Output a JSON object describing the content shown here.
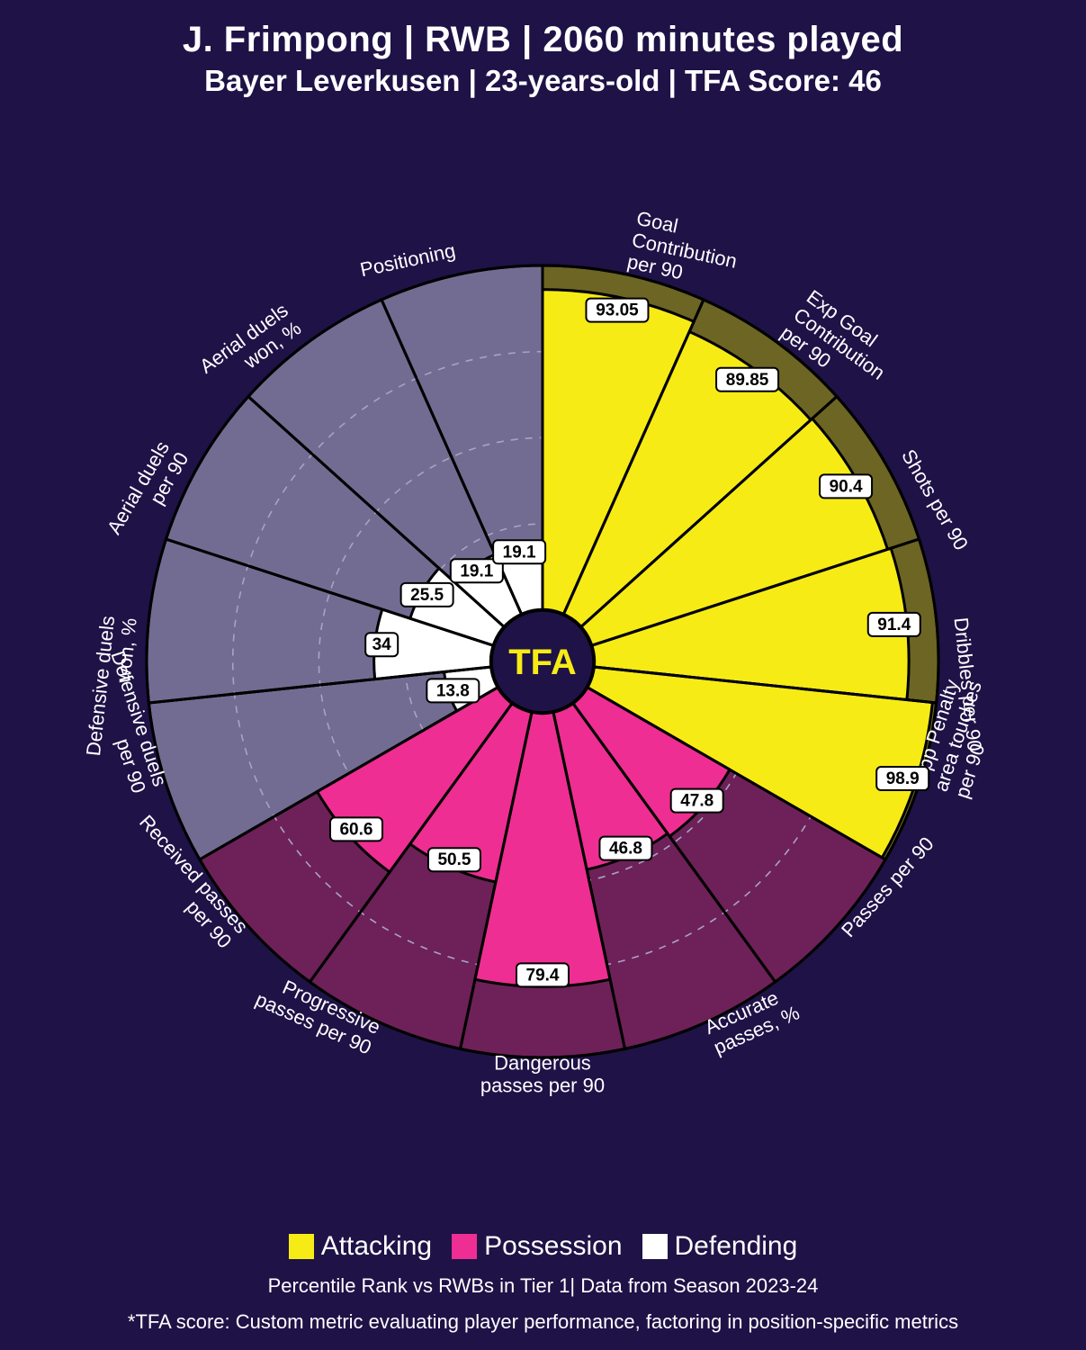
{
  "header": {
    "title": "J. Frimpong | RWB | 2060 minutes played",
    "subtitle": "Bayer Leverkusen | 23-years-old | TFA Score: 46"
  },
  "legend": {
    "items": [
      {
        "label": "Attacking",
        "color": "#f7eb15"
      },
      {
        "label": "Possession",
        "color": "#ee2e92"
      },
      {
        "label": "Defending",
        "color": "#ffffff"
      }
    ]
  },
  "footnotes": {
    "line1": "Percentile Rank vs RWBs in Tier 1| Data from Season 2023-24",
    "line2": "*TFA score: Custom metric evaluating player performance, factoring in position-specific metrics"
  },
  "chart": {
    "type": "polar_bar",
    "center_label": "TFA",
    "center_label_color": "#f7eb15",
    "background_color": "#1e1247",
    "grid_color": "#a9a3c2",
    "slice_border_color": "#000000",
    "max_value": 100,
    "ring_values": [
      25,
      50,
      75,
      100
    ],
    "center_radius_pct": 13,
    "outer_radius_pct": 100,
    "hub_fill": "#1e1247",
    "hub_stroke": "#000000",
    "label_fontsize": 22,
    "value_fontsize": 19,
    "value_box_fill": "#ffffff",
    "value_box_text": "#000000",
    "value_box_radius": 5,
    "categories": {
      "Attacking": {
        "fill": "#f7eb15",
        "back": "#6c6524"
      },
      "Possession": {
        "fill": "#ee2e92",
        "back": "#6d2158"
      },
      "Defending": {
        "fill": "#ffffff",
        "back": "#726c92"
      }
    },
    "slices": [
      {
        "label": "Goal Contribution per 90",
        "value": 93.05,
        "category": "Attacking"
      },
      {
        "label": "Exp Goal Contribution per 90",
        "value": 89.85,
        "category": "Attacking"
      },
      {
        "label": "Shots per 90",
        "value": 90.4,
        "category": "Attacking"
      },
      {
        "label": "Dribbles per 90",
        "value": 91.4,
        "category": "Attacking"
      },
      {
        "label": "Opp Penalty area touches per 90",
        "value": 98.9,
        "category": "Attacking"
      },
      {
        "label": "Passes per 90",
        "value": 47.8,
        "category": "Possession"
      },
      {
        "label": "Accurate passes, %",
        "value": 46.8,
        "category": "Possession"
      },
      {
        "label": "Dangerous passes per 90",
        "value": 79.4,
        "category": "Possession"
      },
      {
        "label": "Progressive passes per 90",
        "value": 50.5,
        "category": "Possession"
      },
      {
        "label": "Received passes per 90",
        "value": 60.6,
        "category": "Possession"
      },
      {
        "label": "Defensive duels per 90",
        "value": 13.8,
        "category": "Defending"
      },
      {
        "label": "Defensive duels won, %",
        "value": 34.0,
        "category": "Defending"
      },
      {
        "label": "Aerial duels per 90",
        "value": 25.5,
        "category": "Defending"
      },
      {
        "label": "Aerial duels won, %",
        "value": 19.1,
        "category": "Defending"
      },
      {
        "label": "Positioning",
        "value": 19.1,
        "category": "Defending"
      }
    ]
  }
}
